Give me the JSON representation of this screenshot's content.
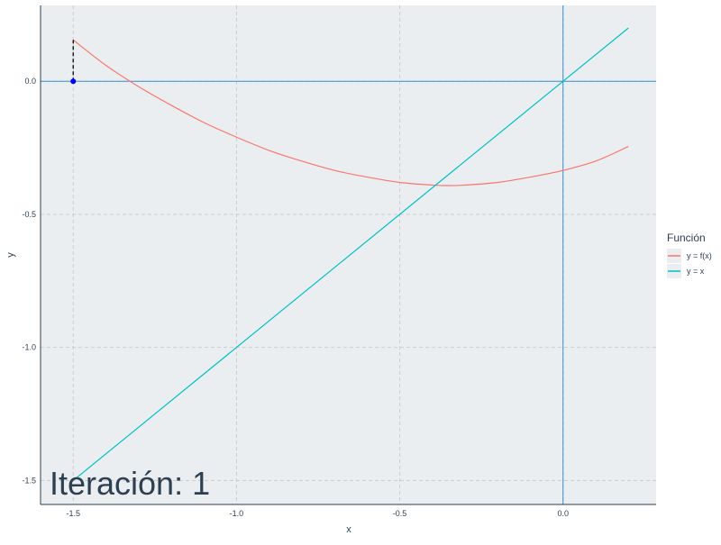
{
  "chart_data": {
    "type": "line",
    "title": "",
    "xlabel": "x",
    "ylabel": "y",
    "xlim": [
      -1.6,
      0.285
    ],
    "ylim": [
      -1.59,
      0.285
    ],
    "xticks": [
      -1.5,
      -1.0,
      -0.5,
      0.0
    ],
    "xtick_labels": [
      "-1.5",
      "-1.0",
      "-0.5",
      "0.0"
    ],
    "yticks": [
      -1.5,
      -1.0,
      -0.5,
      0.0
    ],
    "ytick_labels": [
      "-1.5",
      "-1.0",
      "-0.5",
      "0.0"
    ],
    "grid": true,
    "legend": {
      "title": "Función",
      "placement": "right"
    },
    "series": [
      {
        "name": "y = f(x)",
        "color": "#f8766d",
        "x": [
          -1.5,
          -1.4,
          -1.3,
          -1.2,
          -1.1,
          -1.0,
          -0.9,
          -0.8,
          -0.7,
          -0.6,
          -0.5,
          -0.4,
          -0.35,
          -0.3,
          -0.2,
          -0.1,
          0.0,
          0.1,
          0.2
        ],
        "y": [
          0.155,
          0.06,
          -0.02,
          -0.09,
          -0.155,
          -0.21,
          -0.26,
          -0.3,
          -0.335,
          -0.36,
          -0.38,
          -0.39,
          -0.392,
          -0.39,
          -0.38,
          -0.36,
          -0.335,
          -0.3,
          -0.245
        ]
      },
      {
        "name": "y = x",
        "color": "#00bfc4",
        "x": [
          -1.5,
          0.2
        ],
        "y": [
          -1.5,
          0.2
        ]
      }
    ],
    "reference_lines": {
      "color": "#3a8fd1",
      "x_at": 0.0,
      "y_at": 0.0
    },
    "iteration": {
      "point": {
        "x": -1.5,
        "y": 0.0
      },
      "segment": {
        "x": -1.5,
        "y_from": 0.0,
        "y_to": 0.155
      },
      "point_color": "#0000ff",
      "segment_color": "#000000"
    },
    "annotation": {
      "text": "Iteración: 1",
      "position": "bottom-left"
    },
    "colors": {
      "panel_background": "#ebeef0",
      "grid": "#c9cdd1",
      "axis": "#2e3f51",
      "text": "#2e3f51"
    }
  }
}
